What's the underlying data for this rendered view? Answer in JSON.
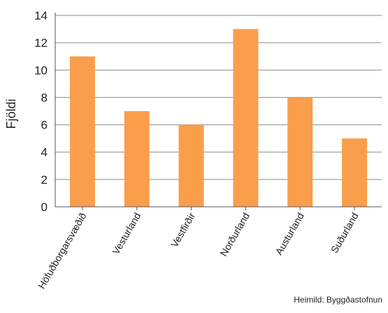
{
  "chart_data": {
    "type": "bar",
    "title": "",
    "xlabel": "",
    "ylabel": "Fjöldi",
    "ylim": [
      0,
      14
    ],
    "yticks": [
      0,
      2,
      4,
      6,
      8,
      10,
      12,
      14
    ],
    "grid": "horizontal",
    "categories": [
      "Höfuðborgarsvæðið",
      "Vesturland",
      "Vestfirðir",
      "Norðurland",
      "Austurland",
      "Suðurland"
    ],
    "values": [
      11,
      7,
      6,
      13,
      8,
      5
    ],
    "bar_color": "#FA9E4B"
  },
  "source": "Heimild: Byggðastofnun"
}
